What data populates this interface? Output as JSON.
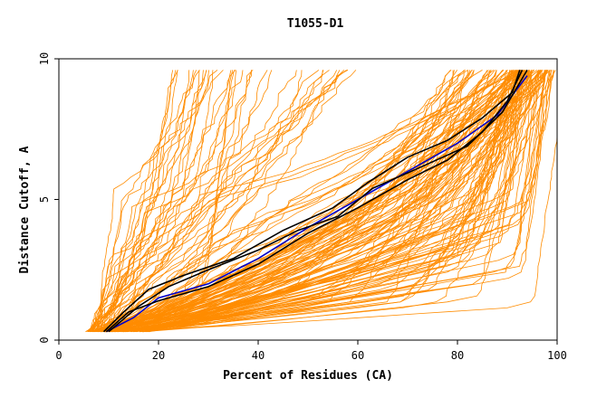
{
  "chart_data": {
    "type": "line",
    "title": "T1055-D1",
    "xlabel": "Percent of Residues (CA)",
    "ylabel": "Distance Cutoff, A",
    "xlim": [
      0,
      100
    ],
    "ylim": [
      0,
      10
    ],
    "xticks": [
      "0",
      "20",
      "40",
      "60",
      "80",
      "100"
    ],
    "yticks": [
      "0",
      "5",
      "10"
    ],
    "grid": false,
    "legend": "none",
    "colors": {
      "models": "#ff8c00",
      "highlight_a": "#0000cc",
      "highlight_b": "#000000"
    },
    "model_families": [
      {
        "name": "",
        "color": "#ff8c00",
        "count": 60,
        "start_x_range": [
          6,
          12
        ],
        "cut_x_range": [
          28,
          70
        ],
        "end_x_range": [
          78,
          99
        ],
        "jitter": 1.4
      },
      {
        "name": "",
        "color": "#ff8c00",
        "count": 70,
        "start_x_range": [
          8,
          18
        ],
        "cut_x_range": [
          58,
          95
        ],
        "end_x_range": [
          90,
          100
        ],
        "jitter": 1.2
      },
      {
        "name": "",
        "color": "#ff8c00",
        "count": 40,
        "start_x_range": [
          5,
          10
        ],
        "cut_x_range": [
          6,
          30
        ],
        "end_x_range": [
          20,
          60
        ],
        "jitter": 1.8
      }
    ],
    "series": [
      {
        "name": "",
        "color": "#0000cc",
        "x": [
          9.5,
          15,
          20,
          30,
          40,
          50,
          60,
          70,
          80,
          88,
          94
        ],
        "y": [
          0.3,
          0.8,
          1.5,
          2.0,
          2.9,
          4.0,
          5.0,
          6.0,
          7.0,
          8.0,
          9.4
        ]
      },
      {
        "name": "",
        "color": "#000000",
        "x": [
          9,
          13,
          18,
          25,
          35,
          45,
          55,
          62,
          70,
          78,
          85,
          91,
          92.5
        ],
        "y": [
          0.3,
          1.0,
          1.8,
          2.3,
          2.9,
          3.9,
          4.7,
          5.6,
          6.5,
          7.1,
          7.9,
          8.8,
          9.6
        ]
      },
      {
        "name": "",
        "color": "#000000",
        "x": [
          9.5,
          14,
          20,
          30,
          40,
          50,
          60,
          70,
          78,
          85,
          90,
          93
        ],
        "y": [
          0.3,
          1.0,
          1.4,
          1.9,
          2.7,
          3.8,
          4.7,
          5.7,
          6.4,
          7.4,
          8.5,
          9.6
        ]
      },
      {
        "name": "",
        "color": "#000000",
        "x": [
          10,
          16,
          22,
          30,
          40,
          48,
          56,
          63,
          72,
          82,
          89,
          94
        ],
        "y": [
          0.3,
          1.2,
          1.9,
          2.5,
          3.2,
          3.9,
          4.4,
          5.4,
          6.1,
          6.9,
          8.1,
          9.6
        ]
      }
    ]
  }
}
